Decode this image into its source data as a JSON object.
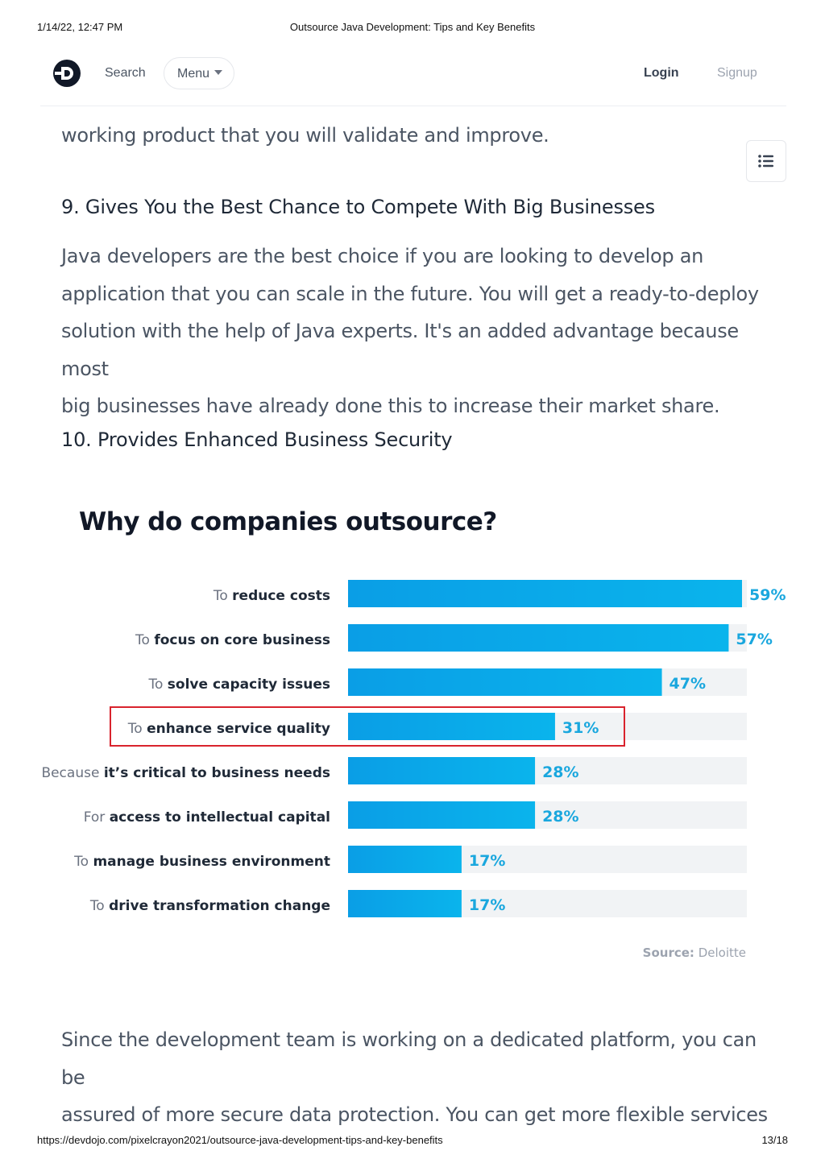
{
  "print_header": {
    "date": "1/14/22, 12:47 PM",
    "title": "Outsource Java Development: Tips and Key Benefits"
  },
  "navbar": {
    "logo_icon": "devdojo-logo-icon",
    "search_label": "Search",
    "menu_label": "Menu",
    "login_label": "Login",
    "signup_label": "Signup"
  },
  "toc_icon": "list-icon",
  "article": {
    "partial_line": "working product that you will validate and improve.",
    "heading_9": "9. Gives You the Best Chance to Compete With Big Businesses",
    "para_9_lines": [
      "Java developers are the best choice if you are looking to develop an",
      "application that you can scale in the future. You will get a ready-to-deploy",
      "solution with the help of Java experts. It's an added advantage because most",
      "big businesses have already done this to increase their market share."
    ],
    "heading_10": "10. Provides Enhanced Business Security",
    "para_10_lines": [
      "Since the development team is working on a dedicated platform, you can be",
      "assured of more secure data protection. You can get more flexible services"
    ]
  },
  "chart_data": {
    "type": "bar",
    "orientation": "horizontal",
    "title": "Why do companies outsource?",
    "categories": [
      {
        "prefix": "To",
        "emphasis": "reduce costs"
      },
      {
        "prefix": "To",
        "emphasis": "focus on core business"
      },
      {
        "prefix": "To",
        "emphasis": "solve capacity issues"
      },
      {
        "prefix": "To",
        "emphasis": "enhance service quality"
      },
      {
        "prefix": "Because",
        "emphasis": "it’s critical to business needs"
      },
      {
        "prefix": "For",
        "emphasis": "access to intellectual capital"
      },
      {
        "prefix": "To",
        "emphasis": "manage business environment"
      },
      {
        "prefix": "To",
        "emphasis": "drive transformation change"
      }
    ],
    "values": [
      59,
      57,
      47,
      31,
      28,
      28,
      17,
      17
    ],
    "value_labels": [
      "59%",
      "57%",
      "47%",
      "31%",
      "28%",
      "28%",
      "17%",
      "17%"
    ],
    "xlim": [
      0,
      100
    ],
    "highlighted_index": 3,
    "bar_color": "#0ab4ec",
    "track_color": "#f1f3f5",
    "highlight_color": "#d9232d",
    "label_color": "#1aa7de",
    "source_label": "Source:",
    "source_value": "Deloitte"
  },
  "print_footer": {
    "url": "https://devdojo.com/pixelcrayon2021/outsource-java-development-tips-and-key-benefits",
    "pages": "13/18"
  }
}
